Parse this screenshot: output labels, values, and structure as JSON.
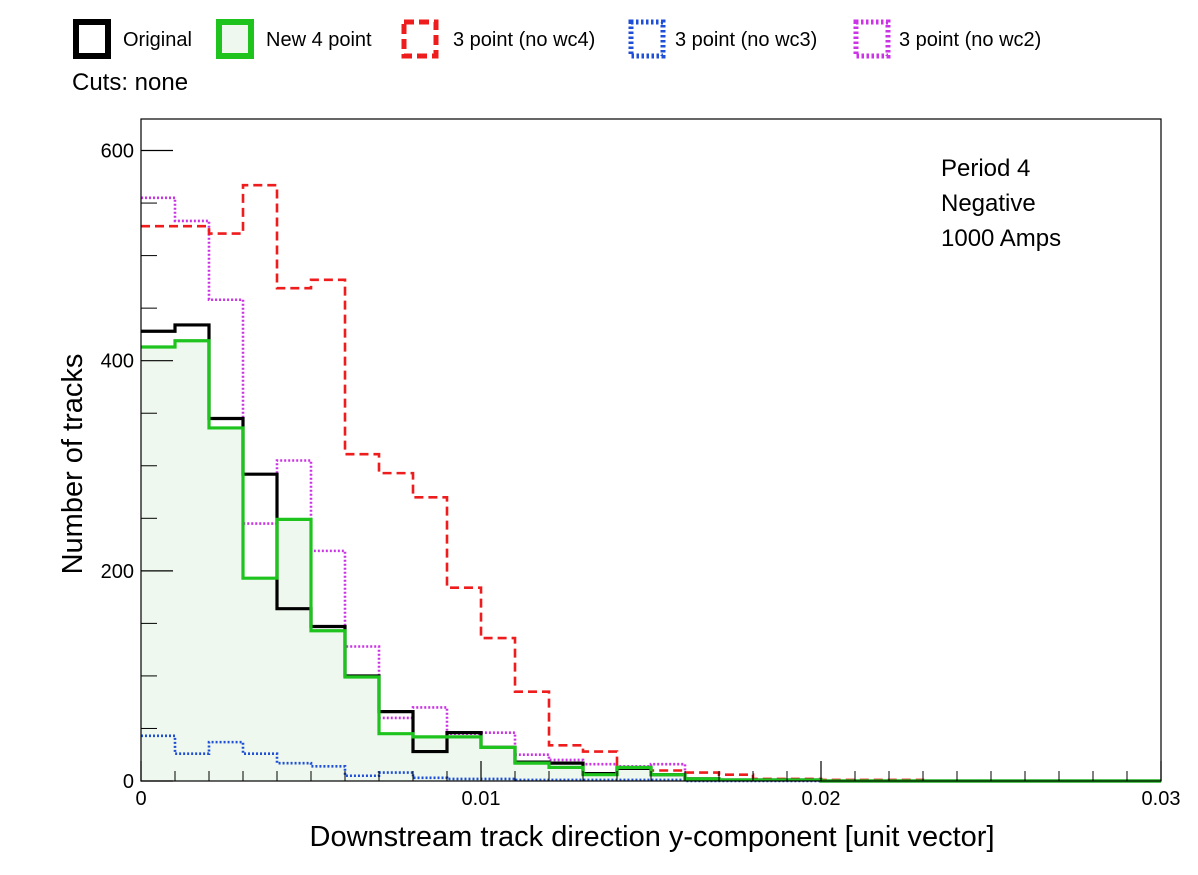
{
  "cuts_text": "Cuts: none",
  "legend": [
    {
      "label": "Original",
      "color": "#000000",
      "dash": "solid"
    },
    {
      "label": "New 4 point",
      "color": "#1ec31e",
      "dash": "solid"
    },
    {
      "label": "3 point (no wc4)",
      "color": "#ee1c1c",
      "dash": "dashed"
    },
    {
      "label": "3 point (no wc3)",
      "color": "#1f4fd6",
      "dash": "dotted"
    },
    {
      "label": "3 point (no wc2)",
      "color": "#cc33e6",
      "dash": "dotted"
    }
  ],
  "annotations": [
    "Period 4",
    "Negative",
    "1000 Amps"
  ],
  "chart_data": {
    "type": "line",
    "subtype": "step-histogram",
    "xlabel": "Downstream track direction y-component [unit vector]",
    "ylabel": "Number of tracks",
    "xlim": [
      0,
      0.03
    ],
    "ylim": [
      0,
      630
    ],
    "x_ticks": [
      0,
      0.01,
      0.02,
      0.03
    ],
    "x_tick_labels": [
      "0",
      "0.01",
      "0.02",
      "0.03"
    ],
    "y_ticks": [
      0,
      200,
      400,
      600
    ],
    "y_tick_labels": [
      "0",
      "200",
      "400",
      "600"
    ],
    "bin_width": 0.001,
    "fill_color": "#eef8ee",
    "series": [
      {
        "name": "Original",
        "color": "#000000",
        "dash": "solid",
        "fill": false,
        "values": [
          428,
          434,
          345,
          292,
          164,
          147,
          100,
          66,
          28,
          46,
          32,
          18,
          17,
          7,
          12,
          6,
          2,
          1,
          1,
          1,
          0,
          0,
          0,
          0,
          0,
          0,
          0,
          0,
          0,
          0
        ]
      },
      {
        "name": "New 4 point",
        "color": "#1ec31e",
        "dash": "solid",
        "fill": true,
        "values": [
          413,
          419,
          336,
          193,
          249,
          143,
          99,
          45,
          42,
          42,
          32,
          17,
          13,
          6,
          13,
          6,
          2,
          1,
          1,
          1,
          0,
          0,
          0,
          0,
          0,
          0,
          0,
          0,
          0,
          0
        ]
      },
      {
        "name": "3 point (no wc4)",
        "color": "#ee1c1c",
        "dash": "dashed",
        "fill": false,
        "values": [
          528,
          528,
          521,
          567,
          469,
          477,
          311,
          293,
          270,
          184,
          136,
          85,
          34,
          28,
          12,
          10,
          8,
          6,
          2,
          2,
          1,
          1,
          1,
          0,
          0,
          0,
          0,
          0,
          0,
          0
        ]
      },
      {
        "name": "3 point (no wc3)",
        "color": "#1f4fd6",
        "dash": "dotted",
        "fill": false,
        "values": [
          43,
          26,
          37,
          26,
          17,
          14,
          5,
          8,
          3,
          2,
          2,
          1,
          1,
          1,
          1,
          1,
          0,
          0,
          0,
          0,
          0,
          0,
          0,
          0,
          0,
          0,
          0,
          0,
          0,
          0
        ]
      },
      {
        "name": "3 point (no wc2)",
        "color": "#cc33e6",
        "dash": "dotted",
        "fill": false,
        "values": [
          555,
          533,
          458,
          245,
          305,
          219,
          128,
          60,
          70,
          45,
          46,
          25,
          20,
          16,
          14,
          16,
          2,
          1,
          1,
          1,
          0,
          0,
          0,
          0,
          0,
          0,
          0,
          0,
          0,
          0
        ]
      }
    ]
  }
}
